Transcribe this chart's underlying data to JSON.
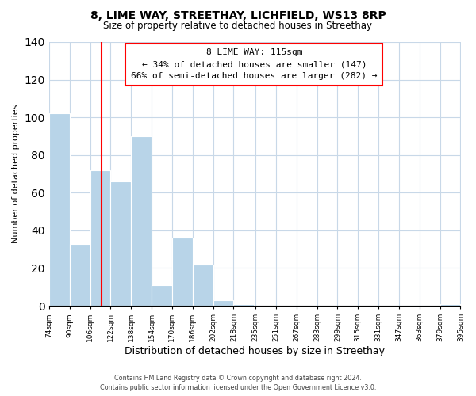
{
  "title": "8, LIME WAY, STREETHAY, LICHFIELD, WS13 8RP",
  "subtitle": "Size of property relative to detached houses in Streethay",
  "xlabel": "Distribution of detached houses by size in Streethay",
  "ylabel": "Number of detached properties",
  "bin_edges": [
    74,
    90,
    106,
    122,
    138,
    154,
    170,
    186,
    202,
    218,
    235,
    251,
    267,
    283,
    299,
    315,
    331,
    347,
    363,
    379,
    395
  ],
  "bin_labels": [
    "74sqm",
    "90sqm",
    "106sqm",
    "122sqm",
    "138sqm",
    "154sqm",
    "170sqm",
    "186sqm",
    "202sqm",
    "218sqm",
    "235sqm",
    "251sqm",
    "267sqm",
    "283sqm",
    "299sqm",
    "315sqm",
    "331sqm",
    "347sqm",
    "363sqm",
    "379sqm",
    "395sqm"
  ],
  "counts": [
    102,
    33,
    72,
    66,
    90,
    11,
    36,
    22,
    3,
    1,
    0,
    0,
    0,
    0,
    0,
    0,
    0,
    0,
    0,
    1
  ],
  "bar_color": "#b8d4e8",
  "bar_edge_color": "#ffffff",
  "grid_color": "#c8d8e8",
  "red_line_x": 115,
  "ylim": [
    0,
    140
  ],
  "yticks": [
    0,
    20,
    40,
    60,
    80,
    100,
    120,
    140
  ],
  "annotation_line1": "8 LIME WAY: 115sqm",
  "annotation_line2": "← 34% of detached houses are smaller (147)",
  "annotation_line3": "66% of semi-detached houses are larger (282) →",
  "footer_line1": "Contains HM Land Registry data © Crown copyright and database right 2024.",
  "footer_line2": "Contains public sector information licensed under the Open Government Licence v3.0.",
  "background_color": "#ffffff"
}
